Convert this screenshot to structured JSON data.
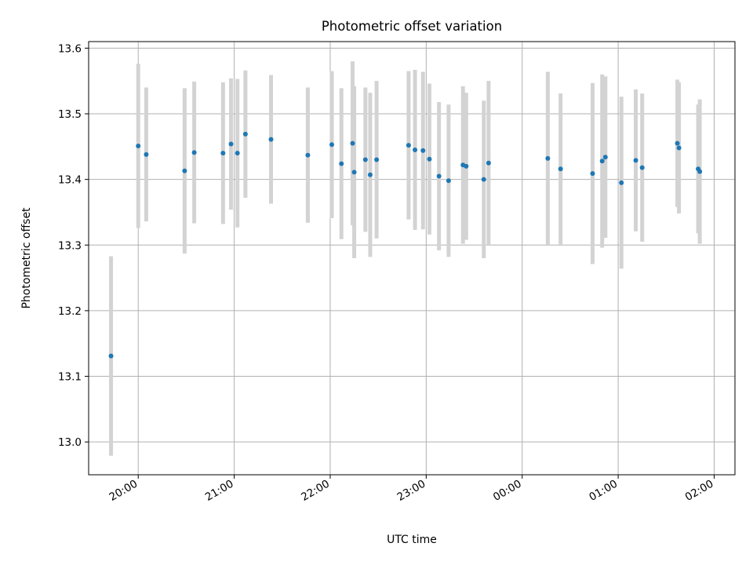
{
  "chart_data": {
    "type": "scatter",
    "title": "Photometric offset variation",
    "xlabel": "UTC time",
    "ylabel": "Photometric offset",
    "xlim": [
      "2000-01-01T19:29:00",
      "2000-01-02T02:13:00"
    ],
    "ylim": [
      12.95,
      13.61
    ],
    "x_ticks": [
      {
        "t": "2000-01-01T20:00:00",
        "label": "20:00"
      },
      {
        "t": "2000-01-01T21:00:00",
        "label": "21:00"
      },
      {
        "t": "2000-01-01T22:00:00",
        "label": "22:00"
      },
      {
        "t": "2000-01-01T23:00:00",
        "label": "23:00"
      },
      {
        "t": "2000-01-02T00:00:00",
        "label": "00:00"
      },
      {
        "t": "2000-01-02T01:00:00",
        "label": "01:00"
      },
      {
        "t": "2000-01-02T02:00:00",
        "label": "02:00"
      }
    ],
    "y_ticks": [
      {
        "v": 13.0,
        "label": "13.0"
      },
      {
        "v": 13.1,
        "label": "13.1"
      },
      {
        "v": 13.2,
        "label": "13.2"
      },
      {
        "v": 13.3,
        "label": "13.3"
      },
      {
        "v": 13.4,
        "label": "13.4"
      },
      {
        "v": 13.5,
        "label": "13.5"
      },
      {
        "v": 13.6,
        "label": "13.6"
      }
    ],
    "grid": true,
    "marker_color": "#1f77b4",
    "errorbar_color": "#d3d3d3",
    "points": [
      {
        "t": "2000-01-01T19:43:00",
        "y": 13.131,
        "err": 0.152
      },
      {
        "t": "2000-01-01T20:00:00",
        "y": 13.451,
        "err": 0.125
      },
      {
        "t": "2000-01-01T20:05:00",
        "y": 13.438,
        "err": 0.102
      },
      {
        "t": "2000-01-01T20:29:00",
        "y": 13.413,
        "err": 0.126
      },
      {
        "t": "2000-01-01T20:35:00",
        "y": 13.441,
        "err": 0.108
      },
      {
        "t": "2000-01-01T20:53:00",
        "y": 13.44,
        "err": 0.108
      },
      {
        "t": "2000-01-01T20:58:00",
        "y": 13.454,
        "err": 0.1
      },
      {
        "t": "2000-01-01T21:02:00",
        "y": 13.44,
        "err": 0.113
      },
      {
        "t": "2000-01-01T21:07:00",
        "y": 13.469,
        "err": 0.097
      },
      {
        "t": "2000-01-01T21:23:00",
        "y": 13.461,
        "err": 0.098
      },
      {
        "t": "2000-01-01T21:46:00",
        "y": 13.437,
        "err": 0.103
      },
      {
        "t": "2000-01-01T22:01:00",
        "y": 13.453,
        "err": 0.112
      },
      {
        "t": "2000-01-01T22:07:00",
        "y": 13.424,
        "err": 0.115
      },
      {
        "t": "2000-01-01T22:14:00",
        "y": 13.455,
        "err": 0.125
      },
      {
        "t": "2000-01-01T22:15:00",
        "y": 13.411,
        "err": 0.131
      },
      {
        "t": "2000-01-01T22:22:00",
        "y": 13.43,
        "err": 0.11
      },
      {
        "t": "2000-01-01T22:25:00",
        "y": 13.407,
        "err": 0.125
      },
      {
        "t": "2000-01-01T22:29:00",
        "y": 13.43,
        "err": 0.12
      },
      {
        "t": "2000-01-01T22:49:00",
        "y": 13.452,
        "err": 0.113
      },
      {
        "t": "2000-01-01T22:53:00",
        "y": 13.445,
        "err": 0.122
      },
      {
        "t": "2000-01-01T22:58:00",
        "y": 13.444,
        "err": 0.12
      },
      {
        "t": "2000-01-01T23:02:00",
        "y": 13.431,
        "err": 0.115
      },
      {
        "t": "2000-01-01T23:08:00",
        "y": 13.405,
        "err": 0.113
      },
      {
        "t": "2000-01-01T23:14:00",
        "y": 13.398,
        "err": 0.116
      },
      {
        "t": "2000-01-01T23:23:00",
        "y": 13.422,
        "err": 0.12
      },
      {
        "t": "2000-01-01T23:25:00",
        "y": 13.42,
        "err": 0.112
      },
      {
        "t": "2000-01-01T23:36:00",
        "y": 13.4,
        "err": 0.12
      },
      {
        "t": "2000-01-01T23:39:00",
        "y": 13.425,
        "err": 0.125
      },
      {
        "t": "2000-01-02T00:16:00",
        "y": 13.432,
        "err": 0.132
      },
      {
        "t": "2000-01-02T00:24:00",
        "y": 13.416,
        "err": 0.115
      },
      {
        "t": "2000-01-02T00:44:00",
        "y": 13.409,
        "err": 0.138
      },
      {
        "t": "2000-01-02T00:50:00",
        "y": 13.428,
        "err": 0.132
      },
      {
        "t": "2000-01-02T00:52:00",
        "y": 13.434,
        "err": 0.123
      },
      {
        "t": "2000-01-02T01:02:00",
        "y": 13.395,
        "err": 0.131
      },
      {
        "t": "2000-01-02T01:11:00",
        "y": 13.429,
        "err": 0.108
      },
      {
        "t": "2000-01-02T01:15:00",
        "y": 13.418,
        "err": 0.113
      },
      {
        "t": "2000-01-02T01:37:00",
        "y": 13.455,
        "err": 0.097
      },
      {
        "t": "2000-01-02T01:38:00",
        "y": 13.448,
        "err": 0.1
      },
      {
        "t": "2000-01-02T01:50:00",
        "y": 13.416,
        "err": 0.098
      },
      {
        "t": "2000-01-02T01:51:00",
        "y": 13.412,
        "err": 0.11
      }
    ]
  }
}
